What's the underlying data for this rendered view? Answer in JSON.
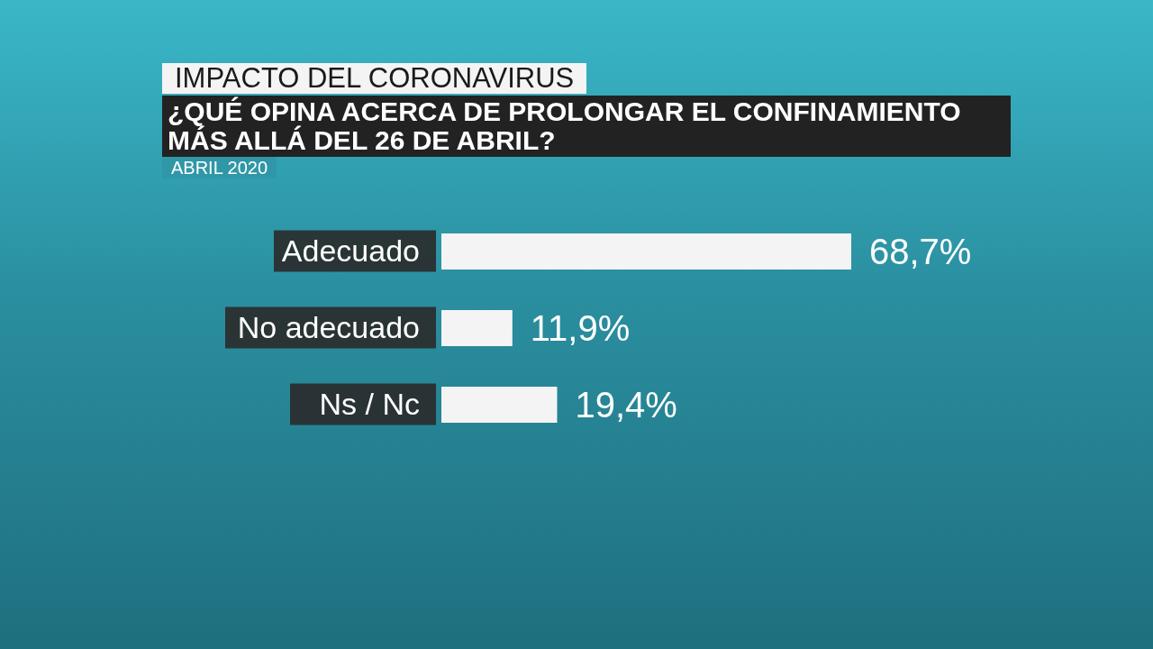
{
  "chart_data": {
    "type": "bar",
    "orientation": "horizontal",
    "title": "IMPACTO DEL CORONAVIRUS",
    "subtitle": "¿QUÉ OPINA ACERCA DE PROLONGAR EL CONFINAMIENTO MÁS ALLÁ DEL 26 DE ABRIL?",
    "annotations": [
      "ABRIL 2020"
    ],
    "categories": [
      "Adecuado",
      "No adecuado",
      "Ns / Nc"
    ],
    "values": [
      68.7,
      11.9,
      19.4
    ],
    "value_labels": [
      "68,7%",
      "11,9%",
      "19,4%"
    ],
    "color": "#f4f4f4"
  }
}
